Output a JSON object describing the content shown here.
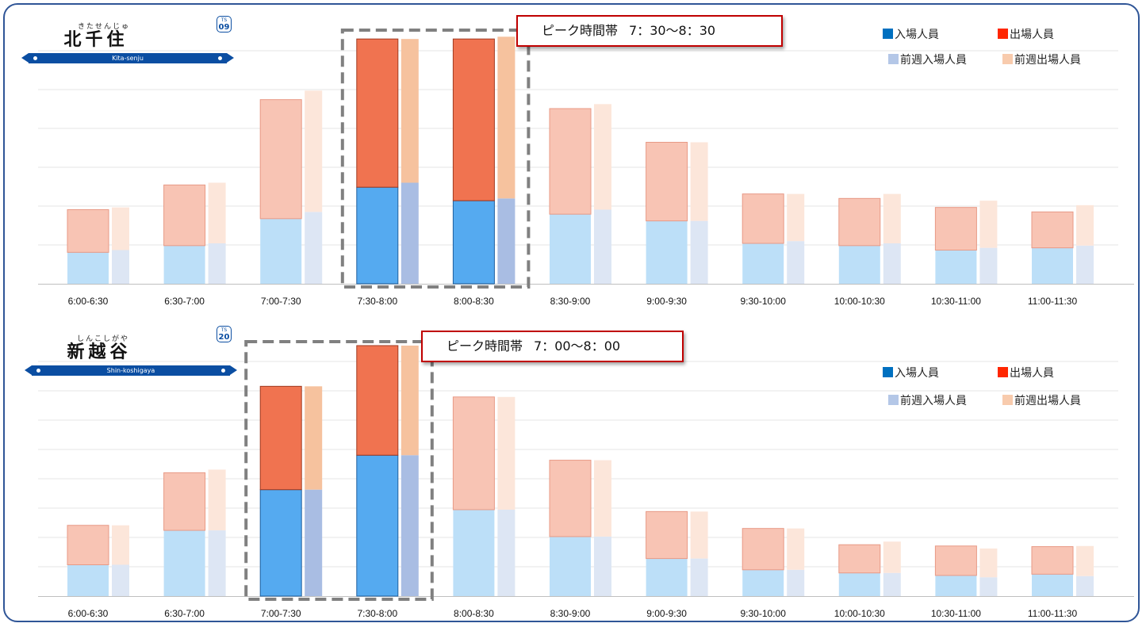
{
  "chart_data": [
    {
      "type": "bar",
      "station": {
        "name": "北千住",
        "furigana": "きたせんじゅ",
        "romaji": "Kita-senju",
        "code_line": "TS",
        "code_num": "09"
      },
      "peak": {
        "label": "ピーク時間帯",
        "time": "7：30～8：30"
      },
      "categories": [
        "6:00-6:30",
        "6:30-7:00",
        "7:00-7:30",
        "7:30-8:00",
        "8:00-8:30",
        "8:30-9:00",
        "9:00-9:30",
        "9:30-10:00",
        "10:00-10:30",
        "10:30-11:00",
        "11:00-11:30"
      ],
      "highlight": [
        "7:30-8:00",
        "8:00-8:30"
      ],
      "series": [
        {
          "name": "入場人員",
          "color": "#0070c0",
          "values": [
            7,
            8.5,
            14.5,
            21.5,
            18.5,
            15.5,
            14,
            9,
            8.5,
            7.5,
            8
          ]
        },
        {
          "name": "出場人員",
          "color": "#ff2600",
          "values": [
            9.5,
            13.5,
            26.5,
            33,
            36,
            23.5,
            17.5,
            11,
            10.5,
            9.5,
            8
          ]
        },
        {
          "name": "前週入場人員",
          "color": "#b4c7e7",
          "values": [
            7.5,
            9,
            16,
            22.5,
            19,
            16.5,
            14,
            9.5,
            9,
            8,
            8.5
          ]
        },
        {
          "name": "前週出場人員",
          "color": "#f8cbad",
          "values": [
            9.5,
            13.5,
            27,
            32,
            36,
            23.5,
            17.5,
            10.5,
            11,
            10.5,
            9
          ]
        }
      ],
      "ylim": [
        0,
        60
      ],
      "grid": true,
      "legend": "top-right"
    },
    {
      "type": "bar",
      "station": {
        "name": "新越谷",
        "furigana": "しんこしがや",
        "romaji": "Shin-koshigaya",
        "code_line": "TS",
        "code_num": "20"
      },
      "peak": {
        "label": "ピーク時間帯",
        "time": "7：00～8：00"
      },
      "categories": [
        "6:00-6:30",
        "6:30-7:00",
        "7:00-7:30",
        "7:30-8:00",
        "8:00-8:30",
        "8:30-9:00",
        "9:00-9:30",
        "9:30-10:00",
        "10:00-10:30",
        "10:30-11:00",
        "11:00-11:30"
      ],
      "highlight": [
        "7:00-7:30",
        "7:30-8:00"
      ],
      "series": [
        {
          "name": "入場人員",
          "color": "#0070c0",
          "values": [
            5,
            10.5,
            17,
            22.5,
            13.8,
            9.5,
            6,
            4.2,
            3.7,
            3.3,
            3.5
          ]
        },
        {
          "name": "出場人員",
          "color": "#ff2600",
          "values": [
            6.3,
            9.2,
            16.5,
            17.5,
            18,
            12.2,
            7.5,
            6.6,
            4.5,
            4.7,
            4.4
          ]
        },
        {
          "name": "前週入場人員",
          "color": "#b4c7e7",
          "values": [
            5,
            10.5,
            17,
            22.5,
            13.8,
            9.5,
            6,
            4.2,
            3.7,
            3,
            3.2
          ]
        },
        {
          "name": "前週出場人員",
          "color": "#f8cbad",
          "values": [
            6.3,
            9.7,
            16.5,
            17.5,
            18,
            12.2,
            7.5,
            6.6,
            5,
            4.6,
            4.8
          ]
        }
      ],
      "ylim": [
        0,
        40
      ],
      "grid": true,
      "legend": "top-right"
    }
  ]
}
